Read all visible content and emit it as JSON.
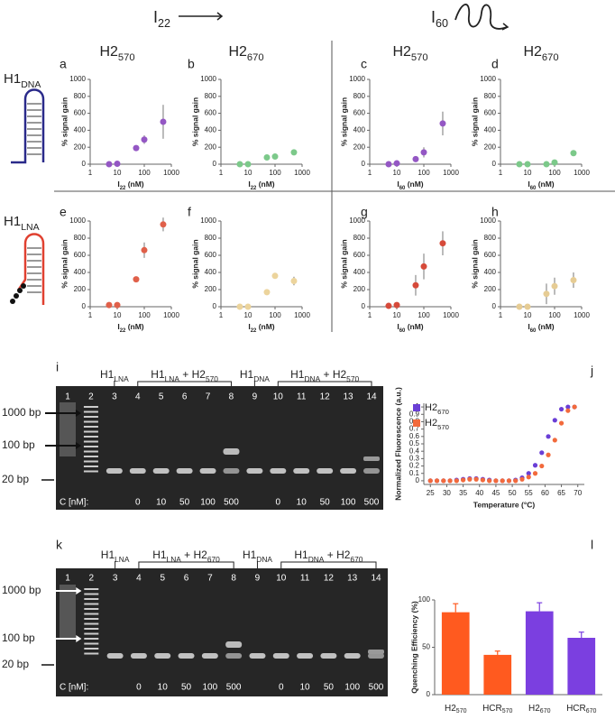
{
  "figure": {
    "top_left": [
      {
        "text": "I"
      },
      {
        "sub": "22"
      }
    ],
    "top_right": [
      {
        "text": "I"
      },
      {
        "sub": "60"
      }
    ],
    "side_top": [
      {
        "text": "H1"
      },
      {
        "sub": "DNA"
      }
    ],
    "side_bottom": [
      {
        "text": "H1"
      },
      {
        "sub": "LNA"
      }
    ],
    "gels": [
      {
        "letter": "i",
        "headers": [
          [
            {
              "text": "H1"
            },
            {
              "sub": "LNA"
            }
          ],
          [
            {
              "text": "H1"
            },
            {
              "sub": "LNA"
            },
            {
              "text": " + H2"
            },
            {
              "sub": "570"
            }
          ],
          [
            {
              "text": "H1"
            },
            {
              "sub": "DNA"
            }
          ],
          [
            {
              "text": "H1"
            },
            {
              "sub": "DNA"
            },
            {
              "text": " + H2"
            },
            {
              "sub": "570"
            }
          ]
        ],
        "lanes": [
          1,
          2,
          3,
          4,
          5,
          6,
          7,
          8,
          9,
          10,
          11,
          12,
          13,
          14
        ],
        "markers": [
          "1000 bp",
          "100 bp",
          "20 bp"
        ],
        "conc_label": "C [nM]:",
        "conc_lna": [
          0,
          10,
          50,
          100,
          500
        ],
        "conc_dna": [
          0,
          10,
          50,
          100,
          500
        ]
      },
      {
        "letter": "k",
        "headers": [
          [
            {
              "text": "H1"
            },
            {
              "sub": "LNA"
            }
          ],
          [
            {
              "text": "H1"
            },
            {
              "sub": "LNA"
            },
            {
              "text": " + H2"
            },
            {
              "sub": "670"
            }
          ],
          [
            {
              "text": "H1"
            },
            {
              "sub": "DNA"
            }
          ],
          [
            {
              "text": "H1"
            },
            {
              "sub": "DNA"
            },
            {
              "text": " + H2"
            },
            {
              "sub": "670"
            }
          ]
        ],
        "lanes": [
          1,
          2,
          3,
          4,
          5,
          6,
          7,
          8,
          9,
          10,
          11,
          12,
          13,
          14
        ],
        "markers": [
          "1000 bp",
          "100 bp",
          "20 bp"
        ],
        "conc_label": "C [nM]:",
        "conc_lna": [
          0,
          10,
          50,
          100,
          500
        ],
        "conc_dna": [
          0,
          10,
          50,
          100,
          500
        ]
      }
    ]
  },
  "chart_data": [
    {
      "type": "scatter",
      "letter": "a",
      "title": [
        {
          "text": "H2"
        },
        {
          "sub": "570"
        }
      ],
      "x": [
        5,
        10,
        50,
        100,
        500
      ],
      "values": [
        0,
        5,
        190,
        290,
        500
      ],
      "errors": [
        10,
        10,
        20,
        50,
        200
      ],
      "color": "#9457c4",
      "log_x": true,
      "xlim": [
        1,
        1000
      ],
      "xticks": [
        1,
        10,
        100,
        1000
      ],
      "ylim": [
        0,
        1000
      ],
      "yticks": [
        0,
        200,
        400,
        600,
        800,
        1000
      ],
      "x_label": [
        {
          "text": "I"
        },
        {
          "sub": "22"
        },
        {
          "text": " (nM)"
        }
      ],
      "y_label": "% signal gain"
    },
    {
      "type": "scatter",
      "letter": "b",
      "title": [
        {
          "text": "H2"
        },
        {
          "sub": "670"
        }
      ],
      "x": [
        5,
        10,
        50,
        100,
        500
      ],
      "values": [
        0,
        0,
        80,
        90,
        140
      ],
      "errors": [
        5,
        5,
        10,
        15,
        30
      ],
      "color": "#7cc98a",
      "log_x": true,
      "xlim": [
        1,
        1000
      ],
      "xticks": [
        1,
        10,
        100,
        1000
      ],
      "ylim": [
        0,
        1000
      ],
      "yticks": [
        0,
        200,
        400,
        600,
        800,
        1000
      ],
      "x_label": [
        {
          "text": "I"
        },
        {
          "sub": "22"
        },
        {
          "text": " (nM)"
        }
      ],
      "y_label": "% signal gain"
    },
    {
      "type": "scatter",
      "letter": "c",
      "title": [
        {
          "text": "H2"
        },
        {
          "sub": "570"
        }
      ],
      "x": [
        5,
        10,
        50,
        100,
        500
      ],
      "values": [
        0,
        10,
        60,
        140,
        480
      ],
      "errors": [
        5,
        5,
        30,
        60,
        140
      ],
      "color": "#9457c4",
      "log_x": true,
      "xlim": [
        1,
        1000
      ],
      "xticks": [
        1,
        10,
        100,
        1000
      ],
      "ylim": [
        0,
        1000
      ],
      "yticks": [
        0,
        200,
        400,
        600,
        800,
        1000
      ],
      "x_label": [
        {
          "text": "I"
        },
        {
          "sub": "60"
        },
        {
          "text": " (nM)"
        }
      ],
      "y_label": "% signal gain"
    },
    {
      "type": "scatter",
      "letter": "d",
      "title": [
        {
          "text": "H2"
        },
        {
          "sub": "670"
        }
      ],
      "x": [
        5,
        10,
        50,
        100,
        500
      ],
      "values": [
        0,
        0,
        0,
        20,
        130
      ],
      "errors": [
        5,
        5,
        5,
        10,
        20
      ],
      "color": "#7cc98a",
      "log_x": true,
      "xlim": [
        1,
        1000
      ],
      "xticks": [
        1,
        10,
        100,
        1000
      ],
      "ylim": [
        0,
        1000
      ],
      "yticks": [
        0,
        200,
        400,
        600,
        800,
        1000
      ],
      "x_label": [
        {
          "text": "I"
        },
        {
          "sub": "60"
        },
        {
          "text": " (nM)"
        }
      ],
      "y_label": "% signal gain"
    },
    {
      "type": "scatter",
      "letter": "e",
      "x": [
        5,
        10,
        50,
        100,
        500
      ],
      "values": [
        20,
        20,
        320,
        660,
        960
      ],
      "errors": [
        5,
        5,
        20,
        90,
        80
      ],
      "color": "#e0604a",
      "log_x": true,
      "xlim": [
        1,
        1000
      ],
      "xticks": [
        1,
        10,
        100,
        1000
      ],
      "ylim": [
        0,
        1000
      ],
      "yticks": [
        0,
        200,
        400,
        600,
        800,
        1000
      ],
      "x_label": [
        {
          "text": "I"
        },
        {
          "sub": "22"
        },
        {
          "text": " (nM)"
        }
      ],
      "y_label": "% signal gain"
    },
    {
      "type": "scatter",
      "letter": "f",
      "x": [
        5,
        10,
        50,
        100,
        500
      ],
      "values": [
        0,
        0,
        170,
        360,
        300
      ],
      "errors": [
        5,
        5,
        20,
        20,
        50
      ],
      "color": "#ecd49c",
      "log_x": true,
      "xlim": [
        1,
        1000
      ],
      "xticks": [
        1,
        10,
        100,
        1000
      ],
      "ylim": [
        0,
        1000
      ],
      "yticks": [
        0,
        200,
        400,
        600,
        800,
        1000
      ],
      "x_label": [
        {
          "text": "I"
        },
        {
          "sub": "22"
        },
        {
          "text": " (nM)"
        }
      ],
      "y_label": "% signal gain"
    },
    {
      "type": "scatter",
      "letter": "g",
      "x": [
        5,
        10,
        50,
        100,
        500
      ],
      "values": [
        10,
        20,
        250,
        470,
        740
      ],
      "errors": [
        5,
        5,
        120,
        150,
        140
      ],
      "color": "#d64a3a",
      "log_x": true,
      "xlim": [
        1,
        1000
      ],
      "xticks": [
        1,
        10,
        100,
        1000
      ],
      "ylim": [
        0,
        1000
      ],
      "yticks": [
        0,
        200,
        400,
        600,
        800,
        1000
      ],
      "x_label": [
        {
          "text": "I"
        },
        {
          "sub": "60"
        },
        {
          "text": " (nM)"
        }
      ],
      "y_label": "% signal gain"
    },
    {
      "type": "scatter",
      "letter": "h",
      "x": [
        5,
        10,
        50,
        100,
        500
      ],
      "values": [
        0,
        0,
        150,
        240,
        310
      ],
      "errors": [
        5,
        5,
        120,
        100,
        90
      ],
      "color": "#e6cc94",
      "log_x": true,
      "xlim": [
        1,
        1000
      ],
      "xticks": [
        1,
        10,
        100,
        1000
      ],
      "ylim": [
        0,
        1000
      ],
      "yticks": [
        0,
        200,
        400,
        600,
        800,
        1000
      ],
      "x_label": [
        {
          "text": "I"
        },
        {
          "sub": "60"
        },
        {
          "text": " (nM)"
        }
      ],
      "y_label": "% signal gain"
    },
    {
      "type": "scatter",
      "letter": "j",
      "x": [
        25,
        27,
        29,
        31,
        33,
        35,
        37,
        39,
        41,
        43,
        45,
        47,
        49,
        51,
        53,
        55,
        57,
        59,
        61,
        63,
        65,
        67,
        69
      ],
      "series": [
        {
          "name": [
            {
              "text": "H2"
            },
            {
              "sub": "670"
            }
          ],
          "color": "#6a3fd6",
          "values": [
            0,
            0,
            0,
            0,
            0.01,
            0.02,
            0.03,
            0.03,
            0.02,
            0.01,
            0,
            0,
            0,
            0.01,
            0.04,
            0.1,
            0.21,
            0.38,
            0.6,
            0.82,
            0.97,
            1,
            1
          ]
        },
        {
          "name": [
            {
              "text": "H2"
            },
            {
              "sub": "570"
            }
          ],
          "color": "#f26a3c",
          "values": [
            0,
            0,
            0,
            0,
            0,
            0.01,
            0.02,
            0.02,
            0.01,
            0,
            0,
            0,
            0,
            0,
            0.02,
            0.05,
            0.1,
            0.2,
            0.35,
            0.55,
            0.78,
            0.95,
            1
          ]
        }
      ],
      "xlim": [
        23,
        72
      ],
      "xticks": [
        25,
        30,
        35,
        40,
        45,
        50,
        55,
        60,
        65,
        70
      ],
      "ylim": [
        -0.05,
        1.05
      ],
      "yticks": [
        0,
        0.1,
        0.2,
        0.3,
        0.4,
        0.5,
        0.6,
        0.7,
        0.8,
        0.9,
        1
      ],
      "x_label": "Temperature (°C)",
      "y_label": "Normalized Fluorescence (a.u.)",
      "legend": "top-left"
    },
    {
      "type": "bar",
      "letter": "l",
      "categories": [
        [
          {
            "text": "H2"
          },
          {
            "sub": "570"
          }
        ],
        [
          {
            "text": "HCR"
          },
          {
            "sub": "570"
          }
        ],
        [
          {
            "text": "H2"
          },
          {
            "sub": "670"
          }
        ],
        [
          {
            "text": "HCR"
          },
          {
            "sub": "670"
          }
        ]
      ],
      "values": [
        87,
        42,
        88,
        60
      ],
      "errors": [
        9,
        4,
        9,
        6
      ],
      "colors": [
        "#ff5a1f",
        "#ff5a1f",
        "#7b3fe0",
        "#7b3fe0"
      ],
      "ylim": [
        0,
        100
      ],
      "yticks": [
        0,
        50,
        100
      ],
      "y_label": "Quenching Efficiency (%)"
    }
  ]
}
